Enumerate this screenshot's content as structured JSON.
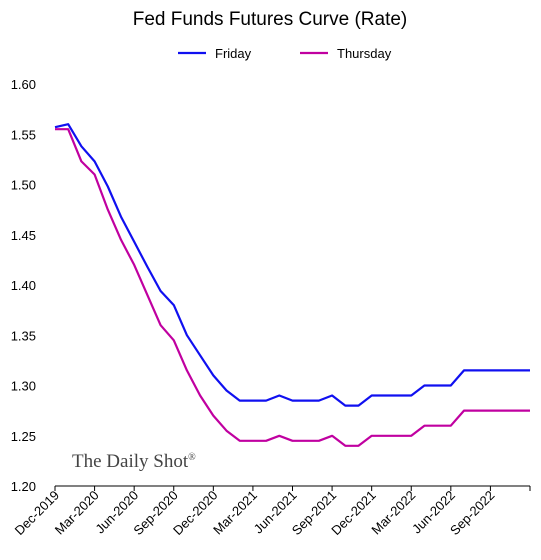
{
  "chart_data": {
    "type": "line",
    "title": "Fed Funds Futures Curve (Rate)",
    "xlabel": "",
    "ylabel": "",
    "ylim": [
      1.2,
      1.6
    ],
    "y_ticks": [
      "1.20",
      "1.25",
      "1.30",
      "1.35",
      "1.40",
      "1.45",
      "1.50",
      "1.55",
      "1.60"
    ],
    "x_ticks": [
      "Dec-2019",
      "Mar-2020",
      "Jun-2020",
      "Sep-2020",
      "Dec-2020",
      "Mar-2021",
      "Jun-2021",
      "Sep-2021",
      "Dec-2021",
      "Mar-2022",
      "Jun-2022",
      "Sep-2022"
    ],
    "x": [
      "Dec-2019",
      "Jan-2020",
      "Feb-2020",
      "Mar-2020",
      "Apr-2020",
      "May-2020",
      "Jun-2020",
      "Jul-2020",
      "Aug-2020",
      "Sep-2020",
      "Oct-2020",
      "Nov-2020",
      "Dec-2020",
      "Jan-2021",
      "Feb-2021",
      "Mar-2021",
      "Apr-2021",
      "May-2021",
      "Jun-2021",
      "Jul-2021",
      "Aug-2021",
      "Sep-2021",
      "Oct-2021",
      "Nov-2021",
      "Dec-2021",
      "Jan-2022",
      "Feb-2022",
      "Mar-2022",
      "Apr-2022",
      "May-2022",
      "Jun-2022",
      "Jul-2022",
      "Aug-2022",
      "Sep-2022",
      "Oct-2022",
      "Nov-2022",
      "Dec-2022"
    ],
    "legend_position": "top",
    "grid": false,
    "series": [
      {
        "name": "Friday",
        "color": "#1010f0",
        "values": [
          1.557,
          1.56,
          1.538,
          1.523,
          1.498,
          1.468,
          1.443,
          1.418,
          1.394,
          1.38,
          1.35,
          1.33,
          1.31,
          1.295,
          1.285,
          1.285,
          1.285,
          1.29,
          1.285,
          1.285,
          1.285,
          1.29,
          1.28,
          1.28,
          1.29,
          1.29,
          1.29,
          1.29,
          1.3,
          1.3,
          1.3,
          1.315,
          1.315,
          1.315,
          1.315,
          1.315,
          1.315
        ]
      },
      {
        "name": "Thursday",
        "color": "#c000a0",
        "values": [
          1.555,
          1.555,
          1.523,
          1.51,
          1.475,
          1.445,
          1.42,
          1.39,
          1.36,
          1.345,
          1.315,
          1.29,
          1.27,
          1.255,
          1.245,
          1.245,
          1.245,
          1.25,
          1.245,
          1.245,
          1.245,
          1.25,
          1.24,
          1.24,
          1.25,
          1.25,
          1.25,
          1.25,
          1.26,
          1.26,
          1.26,
          1.275,
          1.275,
          1.275,
          1.275,
          1.275,
          1.275
        ]
      }
    ]
  },
  "watermark": {
    "text": "The Daily Shot",
    "mark": "®"
  }
}
